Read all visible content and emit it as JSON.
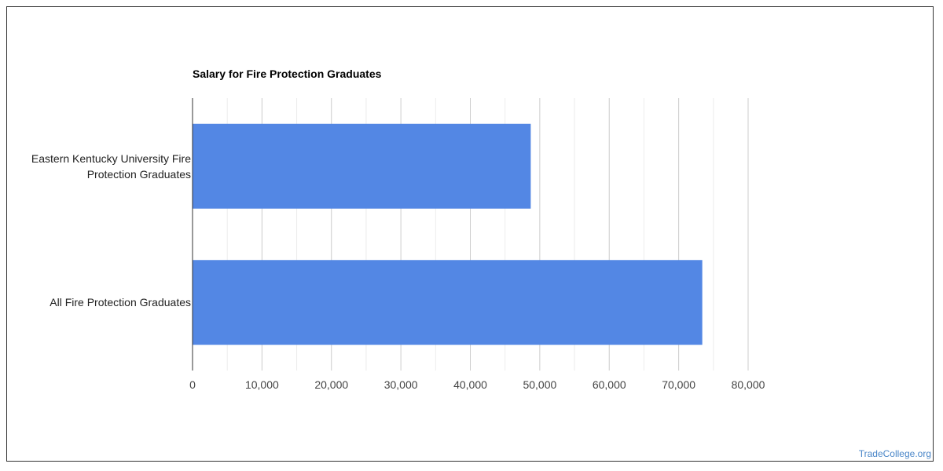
{
  "chart_data": {
    "type": "bar",
    "orientation": "horizontal",
    "title": "Salary for Fire Protection Graduates",
    "categories": [
      "Eastern Kentucky University Fire Protection Graduates",
      "All Fire Protection Graduates"
    ],
    "values": [
      48700,
      73400
    ],
    "xlim": [
      0,
      80000
    ],
    "xticks": [
      "0",
      "10,000",
      "20,000",
      "30,000",
      "40,000",
      "50,000",
      "60,000",
      "70,000",
      "80,000"
    ],
    "xlabel": "",
    "ylabel": "",
    "grid": true,
    "bar_color": "#5387e4"
  },
  "watermark": "TradeCollege.org"
}
